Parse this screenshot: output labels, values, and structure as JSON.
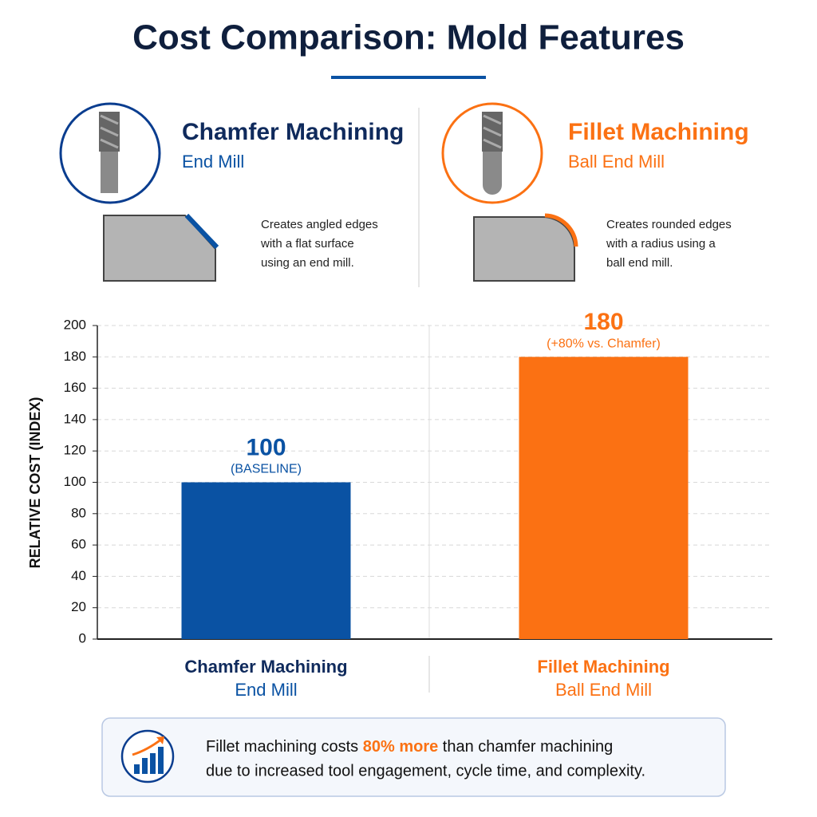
{
  "header": {
    "title": "Cost Comparison: Mold Features"
  },
  "panels": [
    {
      "title": "Chamfer Machining",
      "subtitle": "End Mill",
      "description": [
        "Creates angled edges",
        "with a flat surface",
        "using an end mill."
      ]
    },
    {
      "title": "Fillet Machining",
      "subtitle": "Ball End Mill",
      "description": [
        "Creates rounded edges",
        "with a radius using a",
        "ball end mill."
      ]
    }
  ],
  "chart_data": {
    "type": "bar",
    "categories": [
      "Chamfer Machining",
      "Fillet Machining"
    ],
    "category_subtitles": [
      "End Mill",
      "Ball End Mill"
    ],
    "values": [
      100,
      180
    ],
    "colors": [
      "#0a52a3",
      "#fb7113"
    ],
    "annotations": [
      "(BASELINE)",
      "(+80% vs. Chamfer)"
    ],
    "ylabel": "RELATIVE COST (INDEX)",
    "ylim": [
      0,
      200
    ],
    "yticks": [
      0,
      20,
      40,
      60,
      80,
      100,
      120,
      140,
      160,
      180,
      200
    ],
    "grid": true
  },
  "callout": {
    "before": "Fillet machining costs ",
    "highlight": "80% more",
    "after": " than chamfer machining",
    "line2": "due to increased tool engagement, cycle time, and complexity."
  }
}
